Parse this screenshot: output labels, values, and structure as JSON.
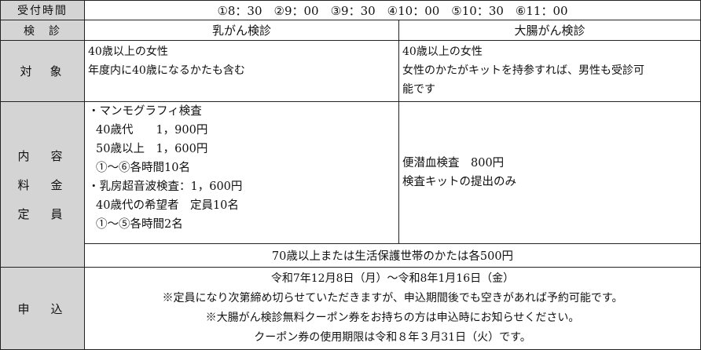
{
  "reception": {
    "label": "受付時間",
    "times": "①8：30　②9：00　③9：30　④10：00　⑤10：30　⑥11：00"
  },
  "exam": {
    "label": "検　診",
    "breast": "乳がん検診",
    "colon": "大腸がん検診"
  },
  "target": {
    "label": "対　象",
    "breast": [
      "40歳以上の女性",
      "年度内に40歳になるかたも含む"
    ],
    "colon": [
      "40歳以上の女性",
      "女性のかたがキットを持参すれば、男性も受診可",
      "能です"
    ]
  },
  "content": {
    "labels": [
      "内　容",
      "料　金",
      "定　員"
    ],
    "breast": [
      "・マンモグラフィ検査",
      "40歳代　　1，900円",
      "50歳以上　1，600円",
      "①～⑥各時間10名",
      "・乳房超音波検査：1，600円",
      "40歳代の希望者　定員10名",
      "①～⑤各時間2名"
    ],
    "colon": [
      "便潜血検査　800円",
      "検査キットの提出のみ"
    ],
    "discount": "70歳以上または生活保護世帯のかたは各500円"
  },
  "apply": {
    "label": "申　込",
    "lines": [
      "令和7年12月8日（月）～令和8年1月16日（金）",
      "※定員になり次第締め切らせていただきますが、申込期間後でも空きがあれば予約可能です。",
      "※大腸がん検診無料クーポン券をお持ちの方は申込時にお知らせください。",
      "クーポン券の使用期限は令和８年３月31日（火）です。"
    ]
  }
}
